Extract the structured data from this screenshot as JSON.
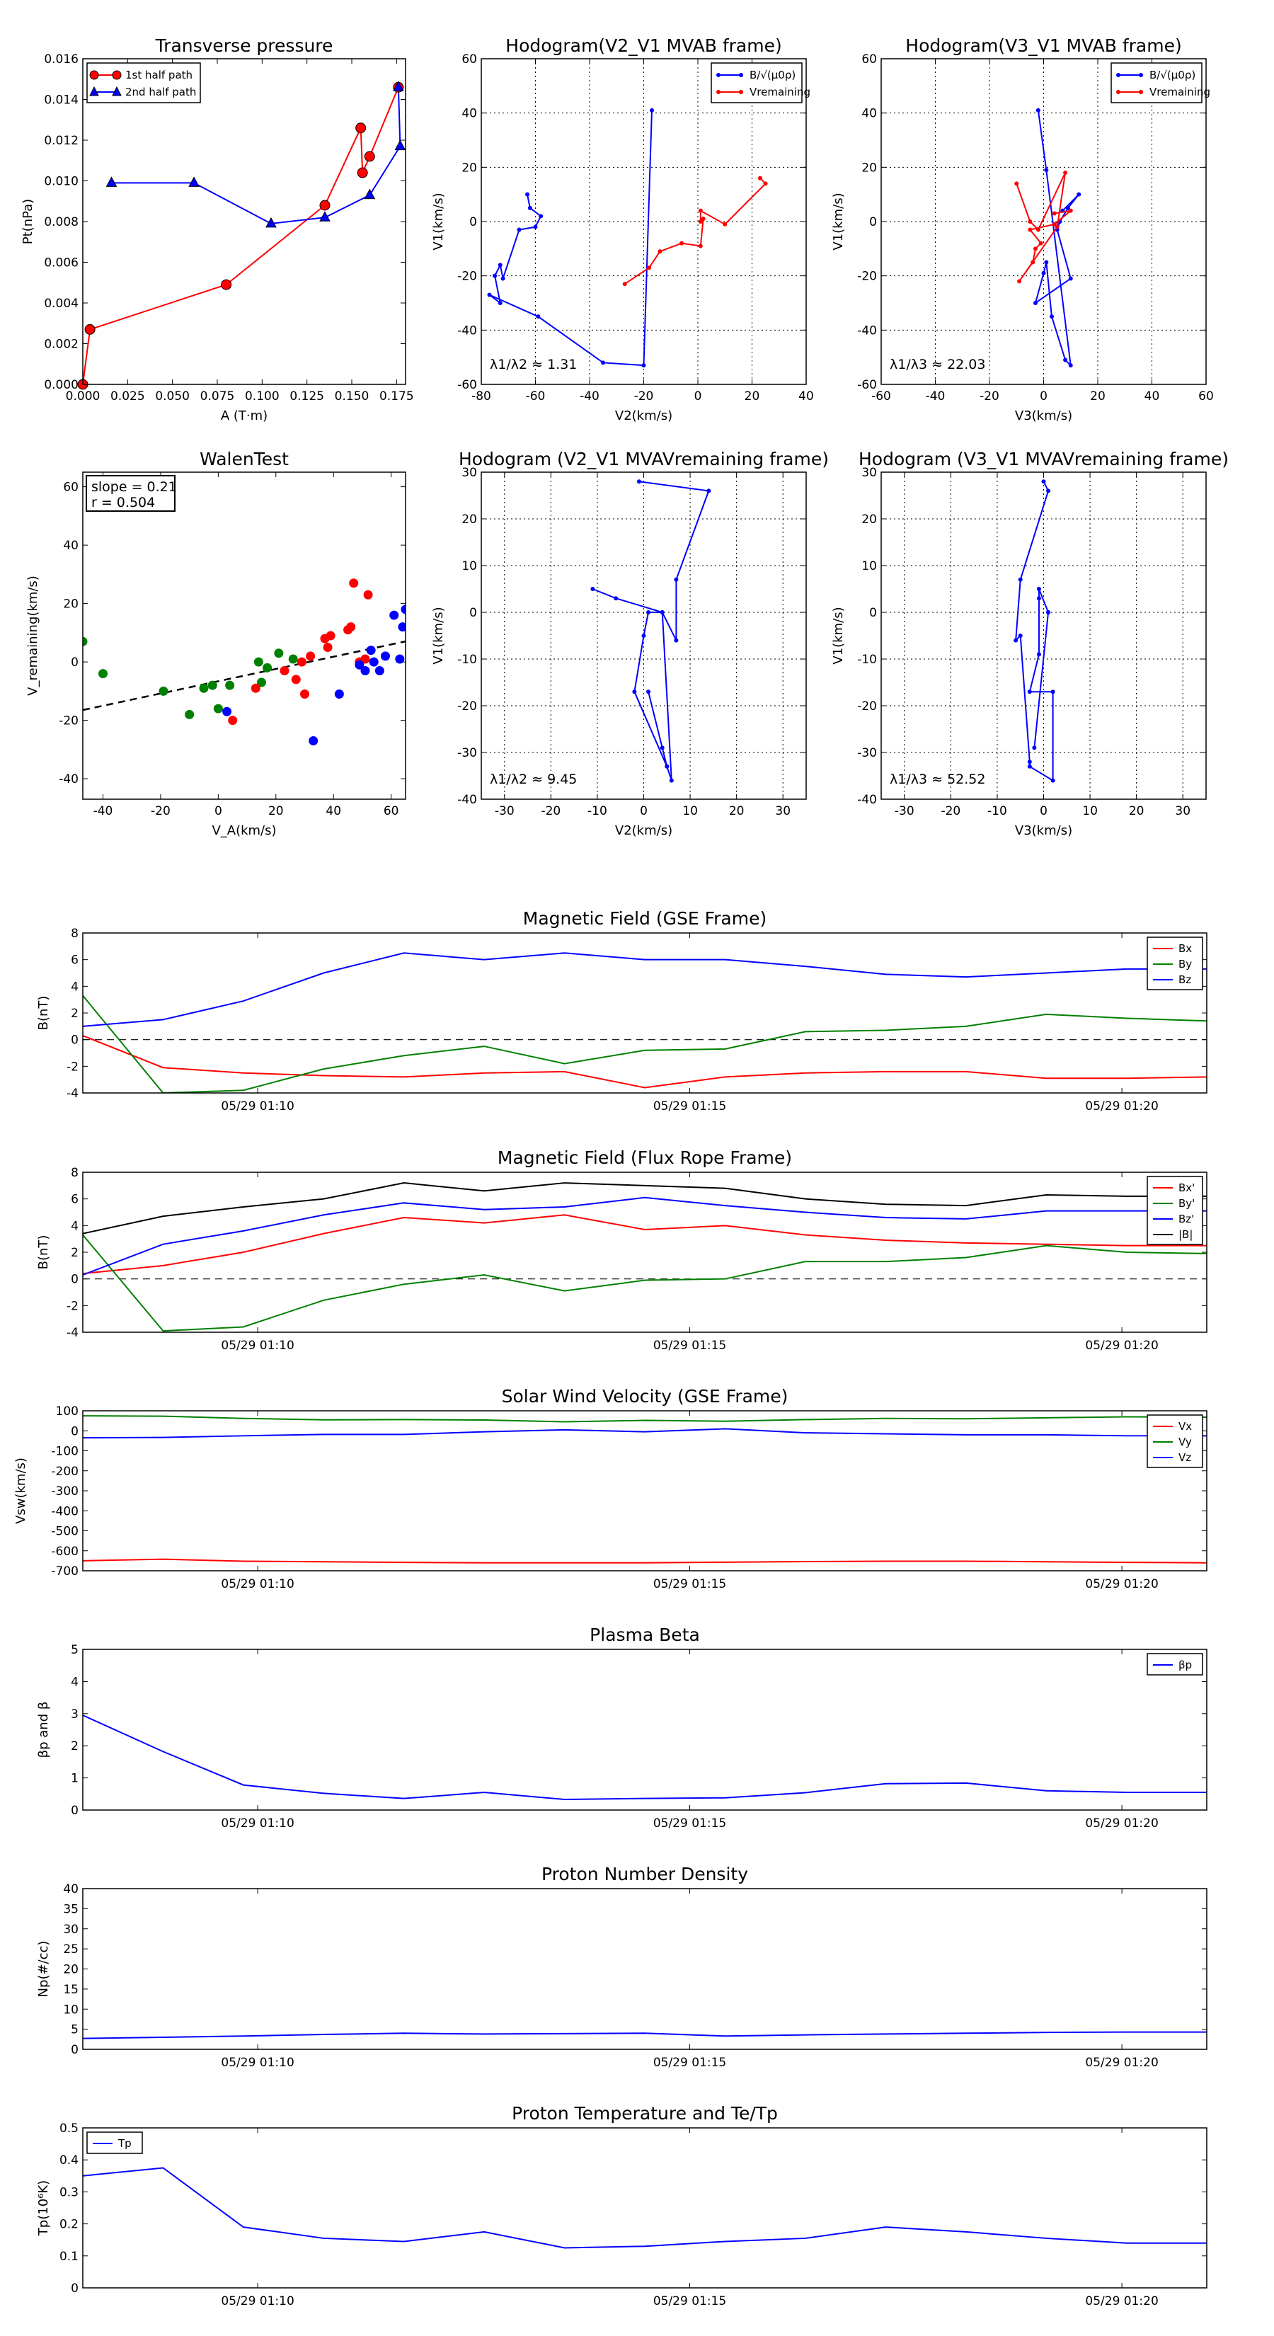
{
  "figure": {
    "background": "#ffffff"
  },
  "chart_data": [
    {
      "type": "line",
      "title": "Transverse pressure",
      "xlabel": "A (T·m)",
      "ylabel": "Pt(nPa)",
      "xlim": [
        0.0,
        0.18
      ],
      "ylim": [
        0.0,
        0.016
      ],
      "xticks": [
        0.0,
        0.025,
        0.05,
        0.075,
        0.1,
        0.125,
        0.15,
        0.175
      ],
      "xtick_labels": [
        "0.000",
        "0.025",
        "0.050",
        "0.075",
        "0.100",
        "0.125",
        "0.150",
        "0.175"
      ],
      "yticks": [
        0.0,
        0.002,
        0.004,
        0.006,
        0.008,
        0.01,
        0.012,
        0.014,
        0.016
      ],
      "ytick_labels": [
        "0.000",
        "0.002",
        "0.004",
        "0.006",
        "0.008",
        "0.010",
        "0.012",
        "0.014",
        "0.016"
      ],
      "grid": false,
      "legend_position": "top-left",
      "series": [
        {
          "name": "1st half path",
          "color": "#ff0000",
          "marker": "circle",
          "x": [
            0.0,
            0.004,
            0.08,
            0.135,
            0.155,
            0.156,
            0.16,
            0.176
          ],
          "y": [
            0.0,
            0.0027,
            0.0049,
            0.0088,
            0.0126,
            0.0104,
            0.0112,
            0.0146
          ]
        },
        {
          "name": "2nd half path",
          "color": "#0000ff",
          "marker": "triangle",
          "x": [
            0.176,
            0.177,
            0.16,
            0.135,
            0.105,
            0.062,
            0.016
          ],
          "y": [
            0.0146,
            0.0117,
            0.0093,
            0.0082,
            0.0079,
            0.0099,
            0.0099
          ]
        }
      ]
    },
    {
      "type": "line",
      "title": "Hodogram(V2_V1 MVAB frame)",
      "xlabel": "V2(km/s)",
      "ylabel": "V1(km/s)",
      "xlim": [
        -80,
        40
      ],
      "ylim": [
        -60,
        60
      ],
      "xticks": [
        -80,
        -60,
        -40,
        -20,
        0,
        20,
        40
      ],
      "yticks": [
        -60,
        -40,
        -20,
        0,
        20,
        40,
        60
      ],
      "grid": true,
      "legend_position": "top-right",
      "annotation": "λ1/λ2 ≈ 1.31",
      "series": [
        {
          "name": "B/√(μ0ρ)",
          "color": "#0000ff",
          "marker": "dot",
          "x": [
            -17,
            -20,
            -35,
            -59,
            -77,
            -73,
            -75,
            -73,
            -72,
            -66,
            -60,
            -58,
            -62,
            -63
          ],
          "y": [
            41,
            -53,
            -52,
            -35,
            -27,
            -30,
            -20,
            -16,
            -21,
            -3,
            -2,
            2,
            5,
            10
          ]
        },
        {
          "name": "Vremaining",
          "color": "#ff0000",
          "marker": "dot",
          "x": [
            -27,
            -18,
            -14,
            -6,
            1,
            2,
            1,
            1,
            10,
            25,
            23
          ],
          "y": [
            -23,
            -17,
            -11,
            -8,
            -9,
            1,
            0,
            4,
            -1,
            14,
            16
          ]
        }
      ]
    },
    {
      "type": "line",
      "title": "Hodogram(V3_V1 MVAB frame)",
      "xlabel": "V3(km/s)",
      "ylabel": "V1(km/s)",
      "xlim": [
        -60,
        60
      ],
      "ylim": [
        -60,
        60
      ],
      "xticks": [
        -60,
        -40,
        -20,
        0,
        20,
        40,
        60
      ],
      "yticks": [
        -60,
        -40,
        -20,
        0,
        20,
        40,
        60
      ],
      "grid": true,
      "legend_position": "top-right",
      "annotation": "λ1/λ3 ≈ 22.03",
      "series": [
        {
          "name": "B/√(μ0ρ)",
          "color": "#0000ff",
          "marker": "dot",
          "x": [
            -2,
            1,
            10,
            8,
            3,
            1,
            0,
            -3,
            10,
            5,
            6,
            9,
            13,
            7
          ],
          "y": [
            41,
            19,
            -53,
            -51,
            -35,
            -15,
            -19,
            -30,
            -21,
            -3,
            0,
            5,
            10,
            4
          ]
        },
        {
          "name": "Vremaining",
          "color": "#ff0000",
          "marker": "dot",
          "x": [
            -10,
            -5,
            -2,
            8,
            5,
            -9,
            -4,
            -3,
            -1,
            -5,
            4,
            10,
            4
          ],
          "y": [
            14,
            0,
            -3,
            18,
            -2,
            -22,
            -15,
            -10,
            -8,
            -3,
            -1,
            4,
            3
          ]
        }
      ]
    },
    {
      "type": "scatter",
      "title": "WalenTest",
      "xlabel": "V_A(km/s)",
      "ylabel": "V_remaining(km/s)",
      "xlim": [
        -47,
        65
      ],
      "ylim": [
        -47,
        65
      ],
      "xticks": [
        -40,
        -20,
        0,
        20,
        40,
        60
      ],
      "yticks": [
        -40,
        -20,
        0,
        20,
        40,
        60
      ],
      "grid": false,
      "annotation": [
        "slope = 0.21",
        "r = 0.504"
      ],
      "fit_line": {
        "slope": 0.21,
        "intercept": -6.6,
        "color": "#000000",
        "style": "dashed"
      },
      "series": [
        {
          "name": "green",
          "color": "#008000",
          "x": [
            -47,
            -40,
            -19,
            -10,
            -5,
            -2,
            0,
            4,
            14,
            15,
            17,
            21,
            26
          ],
          "y": [
            7,
            -4,
            -10,
            -18,
            -9,
            -8,
            -16,
            -8,
            0,
            -7,
            -2,
            3,
            1
          ]
        },
        {
          "name": "red",
          "color": "#ff0000",
          "x": [
            5,
            13,
            23,
            27,
            29,
            30,
            32,
            37,
            38,
            39,
            45,
            46,
            47,
            49,
            51,
            52
          ],
          "y": [
            -20,
            -9,
            -3,
            -6,
            0,
            -11,
            2,
            8,
            5,
            9,
            11,
            12,
            27,
            0,
            1,
            23
          ]
        },
        {
          "name": "blue",
          "color": "#0000ff",
          "x": [
            3,
            33,
            42,
            49,
            51,
            53,
            54,
            56,
            58,
            61,
            63,
            64,
            65
          ],
          "y": [
            -17,
            -27,
            -11,
            -1,
            -3,
            4,
            0,
            -3,
            2,
            16,
            1,
            12,
            18
          ]
        }
      ]
    },
    {
      "type": "line",
      "title": "Hodogram (V2_V1 MVAVremaining frame)",
      "xlabel": "V2(km/s)",
      "ylabel": "V1(km/s)",
      "xlim": [
        -35,
        35
      ],
      "ylim": [
        -40,
        30
      ],
      "xticks": [
        -30,
        -20,
        -10,
        0,
        10,
        20,
        30
      ],
      "yticks": [
        -40,
        -30,
        -20,
        -10,
        0,
        10,
        20,
        30
      ],
      "grid": true,
      "annotation": "λ1/λ2 ≈ 9.45",
      "series": [
        {
          "name": "V",
          "color": "#0000ff",
          "marker": "dot",
          "x": [
            -1,
            14,
            7,
            7,
            4,
            6,
            5,
            1,
            4,
            5,
            -2,
            0,
            1,
            4,
            -6,
            -11
          ],
          "y": [
            28,
            26,
            7,
            -6,
            0,
            -36,
            -33,
            -17,
            -29,
            -33,
            -17,
            -5,
            0,
            0,
            3,
            5
          ]
        }
      ]
    },
    {
      "type": "line",
      "title": "Hodogram (V3_V1 MVAVremaining frame)",
      "xlabel": "V3(km/s)",
      "ylabel": "V1(km/s)",
      "xlim": [
        -35,
        35
      ],
      "ylim": [
        -40,
        30
      ],
      "xticks": [
        -30,
        -20,
        -10,
        0,
        10,
        20,
        30
      ],
      "yticks": [
        -40,
        -30,
        -20,
        -10,
        0,
        10,
        20,
        30
      ],
      "grid": true,
      "annotation": "λ1/λ3 ≈ 52.52",
      "series": [
        {
          "name": "V",
          "color": "#0000ff",
          "marker": "dot",
          "x": [
            0,
            1,
            -5,
            -6,
            -5,
            -3,
            -3,
            2,
            2,
            -3,
            -1,
            -1,
            -1,
            1,
            1,
            -2
          ],
          "y": [
            28,
            26,
            7,
            -6,
            -5,
            -32,
            -33,
            -36,
            -17,
            -17,
            -9,
            3,
            5,
            0,
            0,
            -29
          ]
        }
      ]
    },
    {
      "type": "line",
      "title": "Magnetic Field (GSE Frame)",
      "ylabel": "B(nT)",
      "ylim": [
        -4,
        8
      ],
      "yticks": [
        -4,
        -2,
        0,
        2,
        4,
        6,
        8
      ],
      "xtick_labels": [
        "05/29 01:10",
        "05/29 01:15",
        "05/29 01:20"
      ],
      "legend_position": "top-right",
      "zero_line": true,
      "series": [
        {
          "name": "Bx",
          "color": "#ff0000",
          "y": [
            0.3,
            -2.1,
            -2.5,
            -2.7,
            -2.8,
            -2.5,
            -2.4,
            -3.6,
            -2.8,
            -2.5,
            -2.4,
            -2.4,
            -2.9,
            -2.9,
            -2.8
          ]
        },
        {
          "name": "By",
          "color": "#008000",
          "y": [
            3.3,
            -4.0,
            -3.8,
            -2.2,
            -1.2,
            -0.5,
            -1.8,
            -0.8,
            -0.7,
            0.6,
            0.7,
            1.0,
            1.9,
            1.6,
            1.4
          ]
        },
        {
          "name": "Bz",
          "color": "#0000ff",
          "y": [
            1.0,
            1.5,
            2.9,
            5.0,
            6.5,
            6.0,
            6.5,
            6.0,
            6.0,
            5.5,
            4.9,
            4.7,
            5.0,
            5.3,
            5.3
          ]
        }
      ]
    },
    {
      "type": "line",
      "title": "Magnetic Field (Flux Rope Frame)",
      "ylabel": "B(nT)",
      "ylim": [
        -4,
        8
      ],
      "yticks": [
        -4,
        -2,
        0,
        2,
        4,
        6,
        8
      ],
      "xtick_labels": [
        "05/29 01:10",
        "05/29 01:15",
        "05/29 01:20"
      ],
      "legend_position": "top-right",
      "zero_line": true,
      "series": [
        {
          "name": "Bx'",
          "color": "#ff0000",
          "y": [
            0.4,
            1.0,
            2.0,
            3.4,
            4.6,
            4.2,
            4.8,
            3.7,
            4.0,
            3.3,
            2.9,
            2.7,
            2.6,
            2.5,
            2.5
          ]
        },
        {
          "name": "By'",
          "color": "#008000",
          "y": [
            3.3,
            -3.9,
            -3.6,
            -1.6,
            -0.4,
            0.3,
            -0.9,
            -0.1,
            0.0,
            1.3,
            1.3,
            1.6,
            2.5,
            2.0,
            1.9
          ]
        },
        {
          "name": "Bz'",
          "color": "#0000ff",
          "y": [
            0.3,
            2.6,
            3.6,
            4.8,
            5.7,
            5.2,
            5.4,
            6.1,
            5.5,
            5.0,
            4.6,
            4.5,
            5.1,
            5.1,
            5.1
          ]
        },
        {
          "name": "|B|",
          "color": "#000000",
          "y": [
            3.4,
            4.7,
            5.4,
            6.0,
            7.2,
            6.6,
            7.2,
            7.0,
            6.8,
            6.0,
            5.6,
            5.5,
            6.3,
            6.2,
            6.2
          ]
        }
      ]
    },
    {
      "type": "line",
      "title": "Solar Wind Velocity (GSE Frame)",
      "ylabel": "Vsw(km/s)",
      "ylim": [
        -700,
        100
      ],
      "yticks": [
        -700,
        -600,
        -500,
        -400,
        -300,
        -200,
        -100,
        0,
        100
      ],
      "xtick_labels": [
        "05/29 01:10",
        "05/29 01:15",
        "05/29 01:20"
      ],
      "legend_position": "top-right",
      "series": [
        {
          "name": "Vx",
          "color": "#ff0000",
          "y": [
            -650,
            -642,
            -652,
            -655,
            -658,
            -660,
            -660,
            -660,
            -657,
            -654,
            -652,
            -652,
            -655,
            -658,
            -660
          ]
        },
        {
          "name": "Vy",
          "color": "#008000",
          "y": [
            75,
            73,
            62,
            55,
            56,
            54,
            45,
            52,
            48,
            56,
            62,
            60,
            65,
            70,
            68
          ]
        },
        {
          "name": "Vz",
          "color": "#0000ff",
          "y": [
            -35,
            -33,
            -25,
            -18,
            -18,
            -5,
            5,
            -5,
            10,
            -10,
            -15,
            -20,
            -20,
            -25,
            -25
          ]
        }
      ]
    },
    {
      "type": "line",
      "title": "Plasma Beta",
      "ylabel": "βp and β",
      "ylim": [
        0,
        5
      ],
      "yticks": [
        0,
        1,
        2,
        3,
        4,
        5
      ],
      "xtick_labels": [
        "05/29 01:10",
        "05/29 01:15",
        "05/29 01:20"
      ],
      "legend_position": "top-right",
      "series": [
        {
          "name": "βp",
          "color": "#0000ff",
          "y": [
            2.95,
            1.82,
            0.78,
            0.52,
            0.36,
            0.55,
            0.33,
            0.36,
            0.38,
            0.54,
            0.82,
            0.84,
            0.6,
            0.55,
            0.55
          ]
        }
      ]
    },
    {
      "type": "line",
      "title": "Proton Number Density",
      "ylabel": "Np(#/cc)",
      "ylim": [
        0,
        40
      ],
      "yticks": [
        0,
        5,
        10,
        15,
        20,
        25,
        30,
        35,
        40
      ],
      "xtick_labels": [
        "05/29 01:10",
        "05/29 01:15",
        "05/29 01:20"
      ],
      "series": [
        {
          "name": "Np",
          "color": "#0000ff",
          "y": [
            2.7,
            3.0,
            3.3,
            3.7,
            4.0,
            3.8,
            3.9,
            4.0,
            3.3,
            3.6,
            3.8,
            4.0,
            4.2,
            4.3,
            4.3
          ]
        }
      ]
    },
    {
      "type": "line",
      "title": "Proton Temperature and Te/Tp",
      "ylabel": "Tp(10⁶K)",
      "ylim": [
        0.0,
        0.5
      ],
      "yticks": [
        0.0,
        0.1,
        0.2,
        0.3,
        0.4,
        0.5
      ],
      "xtick_labels": [
        "05/29 01:10",
        "05/29 01:15",
        "05/29 01:20"
      ],
      "legend_position": "top-left",
      "series": [
        {
          "name": "Tp",
          "color": "#0000ff",
          "y": [
            0.35,
            0.375,
            0.19,
            0.155,
            0.145,
            0.175,
            0.125,
            0.13,
            0.145,
            0.155,
            0.19,
            0.175,
            0.155,
            0.14,
            0.14
          ]
        }
      ]
    }
  ]
}
